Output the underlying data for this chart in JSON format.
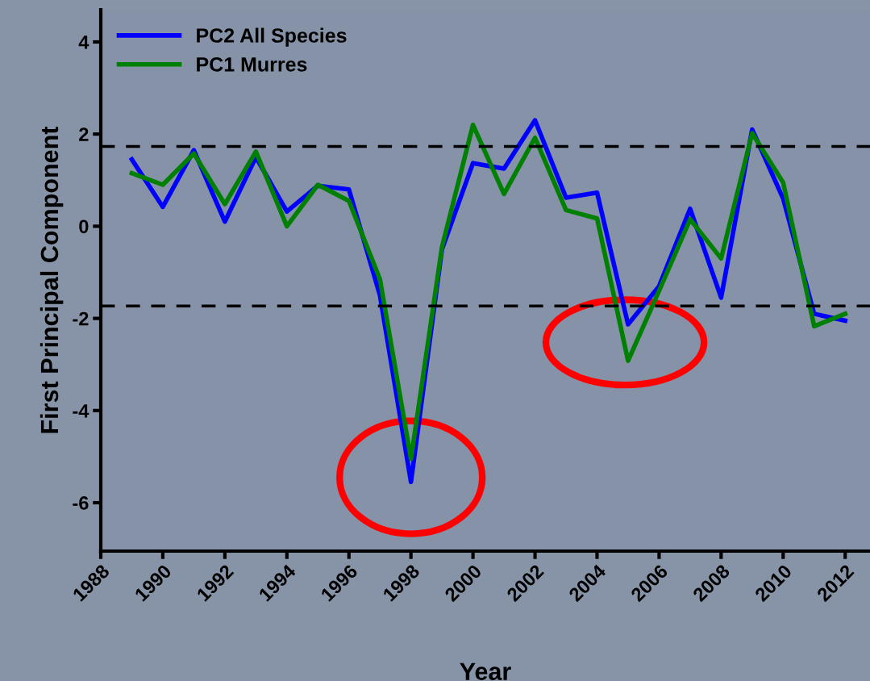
{
  "chart_data": {
    "type": "line",
    "xlabel": "Year",
    "ylabel": "First Principal Component",
    "x": [
      1989,
      1990,
      1991,
      1992,
      1993,
      1994,
      1995,
      1996,
      1997,
      1998,
      1999,
      2000,
      2001,
      2002,
      2003,
      2004,
      2005,
      2006,
      2007,
      2008,
      2009,
      2010,
      2011,
      2012
    ],
    "series": [
      {
        "name": "PC2 All Species",
        "color": "#0000ff",
        "values": [
          1.45,
          0.42,
          1.65,
          0.1,
          1.5,
          0.32,
          0.88,
          0.8,
          -1.5,
          -5.55,
          -0.5,
          1.37,
          1.25,
          2.3,
          0.62,
          0.73,
          -2.13,
          -1.3,
          0.38,
          -1.55,
          2.1,
          0.6,
          -1.9,
          -2.05
        ]
      },
      {
        "name": "PC1 Murres",
        "color": "#008000",
        "values": [
          1.15,
          0.9,
          1.58,
          0.48,
          1.62,
          0.0,
          0.9,
          0.55,
          -1.15,
          -5.05,
          -0.45,
          2.2,
          0.7,
          1.92,
          0.35,
          0.17,
          -2.92,
          -1.4,
          0.15,
          -0.7,
          2.02,
          0.95,
          -2.17,
          -1.9
        ]
      }
    ],
    "xlim": [
      1988,
      2012.8
    ],
    "xticks": [
      1988,
      1990,
      1992,
      1994,
      1996,
      1998,
      2000,
      2002,
      2004,
      2006,
      2008,
      2010,
      2012
    ],
    "ylim": [
      -7.05,
      4.7
    ],
    "yticks": [
      -6,
      -4,
      -2,
      0,
      2,
      4
    ],
    "ref_lines": [
      {
        "axis": "y",
        "value": 1.73,
        "color": "#000000",
        "line_style": "dashed"
      },
      {
        "axis": "y",
        "value": -1.73,
        "color": "#000000",
        "line_style": "dashed"
      }
    ],
    "grid": false,
    "legend": "top left",
    "marker": "none",
    "line_style": "solid"
  }
}
